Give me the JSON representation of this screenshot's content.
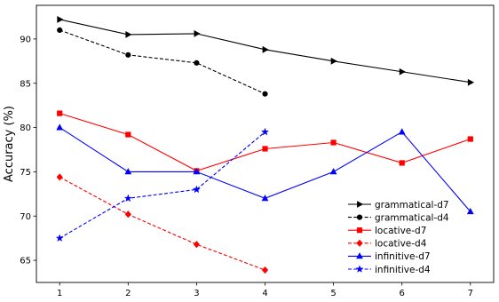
{
  "chart_data": {
    "type": "line",
    "title": "",
    "xlabel": "",
    "ylabel": "Accuracy (%)",
    "x_ticks": [
      1,
      2,
      3,
      4,
      5,
      6,
      7
    ],
    "y_ticks": [
      65,
      70,
      75,
      80,
      85,
      90
    ],
    "xlim": [
      0.66,
      7.34
    ],
    "ylim": [
      62.5,
      93.8
    ],
    "grid": false,
    "legend_position": "lower-right",
    "series": [
      {
        "name": "grammatical-d7",
        "x": [
          1,
          2,
          3,
          4,
          5,
          6,
          7
        ],
        "y": [
          92.2,
          90.5,
          90.6,
          88.8,
          87.5,
          86.3,
          85.1
        ],
        "color": "#000000",
        "linestyle": "solid",
        "marker": "triangle-right"
      },
      {
        "name": "grammatical-d4",
        "x": [
          1,
          2,
          3,
          4
        ],
        "y": [
          91.0,
          88.2,
          87.3,
          83.8
        ],
        "color": "#000000",
        "linestyle": "dashed",
        "marker": "circle"
      },
      {
        "name": "locative-d7",
        "x": [
          1,
          2,
          3,
          4,
          5,
          6,
          7
        ],
        "y": [
          81.6,
          79.2,
          75.1,
          77.6,
          78.3,
          76.0,
          78.7
        ],
        "color": "#ff0000",
        "linestyle": "solid",
        "marker": "square"
      },
      {
        "name": "locative-d4",
        "x": [
          1,
          2,
          3,
          4
        ],
        "y": [
          74.4,
          70.2,
          66.8,
          63.9
        ],
        "color": "#ff0000",
        "linestyle": "dashed",
        "marker": "diamond"
      },
      {
        "name": "infinitive-d7",
        "x": [
          1,
          2,
          3,
          4,
          5,
          6,
          7
        ],
        "y": [
          80.0,
          75.0,
          75.0,
          72.0,
          75.0,
          79.5,
          70.5
        ],
        "color": "#0000ff",
        "linestyle": "solid",
        "marker": "triangle-up"
      },
      {
        "name": "infinitive-d4",
        "x": [
          1,
          2,
          3,
          4
        ],
        "y": [
          67.5,
          72.0,
          73.0,
          79.5
        ],
        "color": "#0000ff",
        "linestyle": "dashed",
        "marker": "star"
      }
    ]
  }
}
